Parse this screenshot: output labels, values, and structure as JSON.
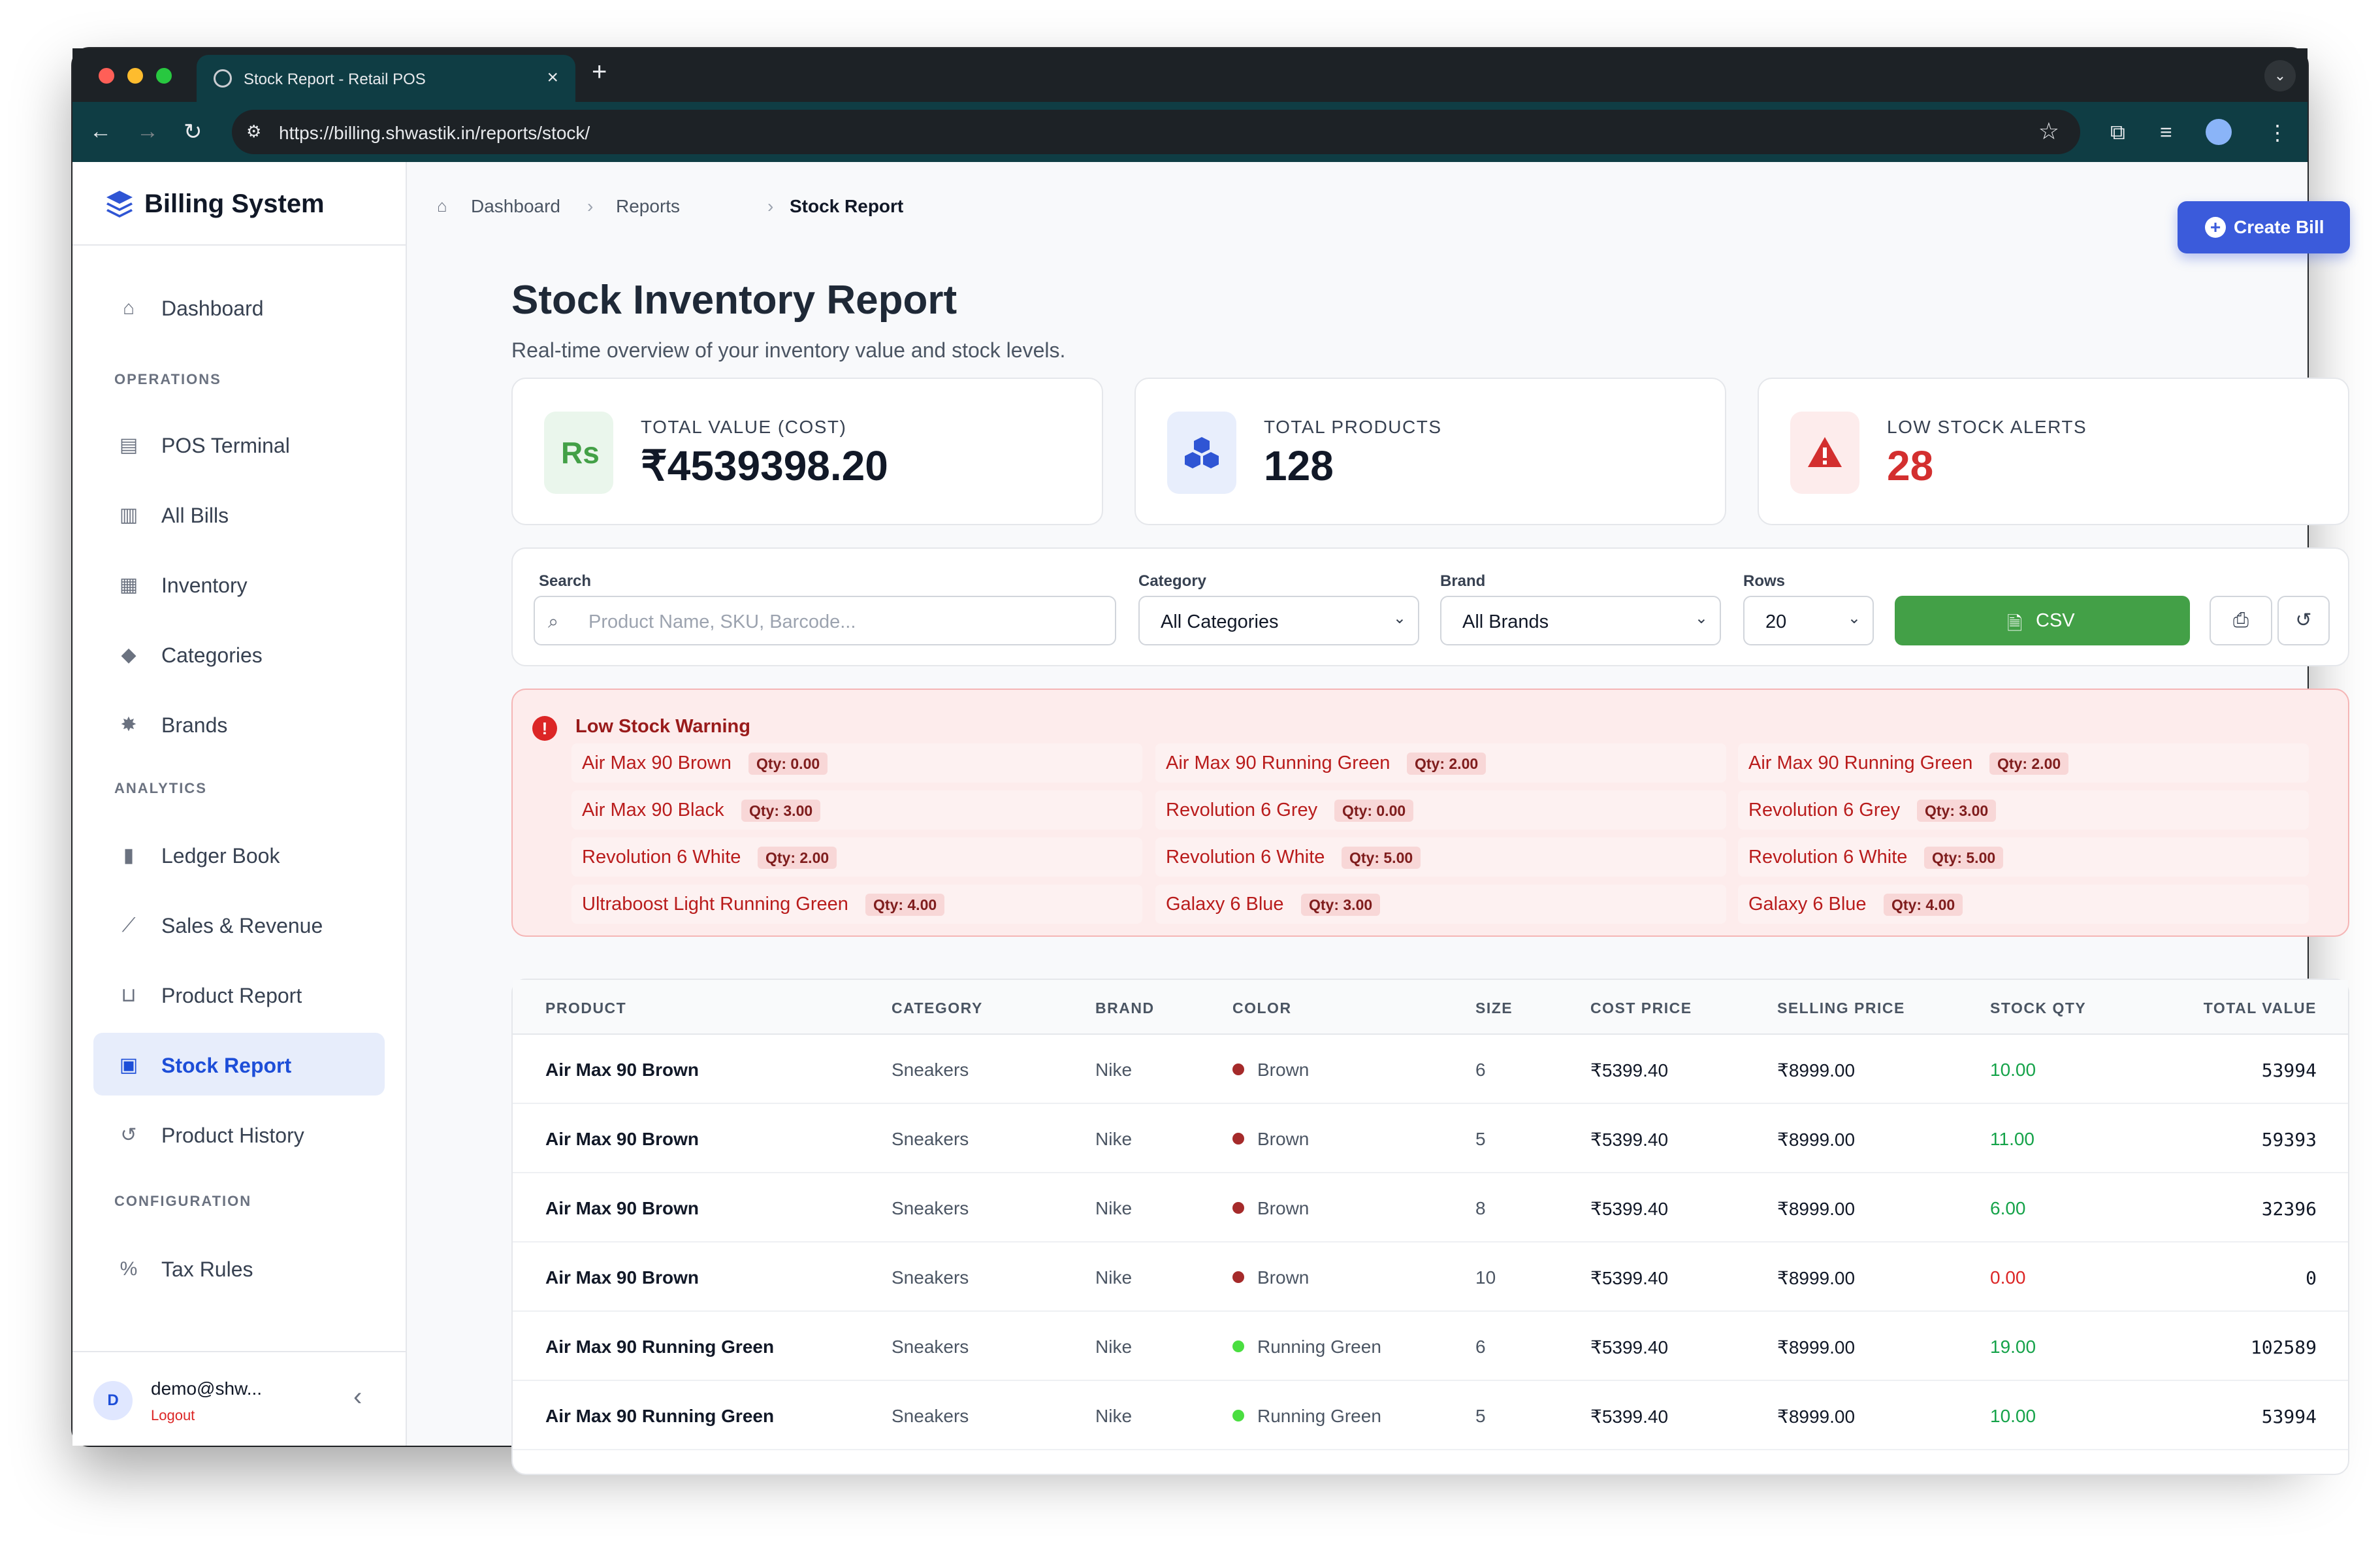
{
  "browser": {
    "tab_title": "Stock Report - Retail POS",
    "url": "https://billing.shwastik.in/reports/stock/"
  },
  "sidebar": {
    "brand": "Billing System",
    "items": [
      {
        "label": "Dashboard",
        "icon": "home-icon"
      },
      {
        "section": "OPERATIONS"
      },
      {
        "label": "POS Terminal",
        "icon": "cash-register-icon"
      },
      {
        "label": "All Bills",
        "icon": "receipt-icon"
      },
      {
        "label": "Inventory",
        "icon": "boxes-icon"
      },
      {
        "label": "Categories",
        "icon": "tags-icon"
      },
      {
        "label": "Brands",
        "icon": "gear-icon"
      },
      {
        "section": "ANALYTICS"
      },
      {
        "label": "Ledger Book",
        "icon": "book-icon"
      },
      {
        "label": "Sales & Revenue",
        "icon": "chart-line-icon"
      },
      {
        "label": "Product Report",
        "icon": "basket-icon"
      },
      {
        "label": "Stock Report",
        "icon": "clipboard-icon",
        "active": true
      },
      {
        "label": "Product History",
        "icon": "history-icon"
      },
      {
        "section": "CONFIGURATION"
      },
      {
        "label": "Tax Rules",
        "icon": "percent-icon"
      }
    ],
    "user": {
      "initial": "D",
      "name": "demo@shw...",
      "logout": "Logout"
    }
  },
  "breadcrumb": [
    "Dashboard",
    "Reports",
    "Stock Report"
  ],
  "create_bill": "Create Bill",
  "page": {
    "title": "Stock Inventory Report",
    "subtitle": "Real-time overview of your inventory value and stock levels."
  },
  "stats": [
    {
      "label": "TOTAL VALUE (COST)",
      "value": "₹4539398.20",
      "icon": "rupee-icon",
      "color": "#43a047"
    },
    {
      "label": "TOTAL PRODUCTS",
      "value": "128",
      "icon": "cubes-icon",
      "color": "#2f55d4"
    },
    {
      "label": "LOW STOCK ALERTS",
      "value": "28",
      "icon": "warning-icon",
      "color": "#d32f2f"
    }
  ],
  "filters": {
    "search_label": "Search",
    "search_placeholder": "Product Name, SKU, Barcode...",
    "category_label": "Category",
    "category_value": "All Categories",
    "brand_label": "Brand",
    "brand_value": "All Brands",
    "rows_label": "Rows",
    "rows_value": "20",
    "csv": "CSV"
  },
  "low_stock": {
    "title": "Low Stock Warning",
    "items": [
      {
        "name": "Air Max 90 Brown",
        "qty": "Qty: 0.00"
      },
      {
        "name": "Air Max 90 Running Green",
        "qty": "Qty: 2.00"
      },
      {
        "name": "Air Max 90 Running Green",
        "qty": "Qty: 2.00"
      },
      {
        "name": "Air Max 90 Black",
        "qty": "Qty: 3.00"
      },
      {
        "name": "Revolution 6 Grey",
        "qty": "Qty: 0.00"
      },
      {
        "name": "Revolution 6 Grey",
        "qty": "Qty: 3.00"
      },
      {
        "name": "Revolution 6 White",
        "qty": "Qty: 2.00"
      },
      {
        "name": "Revolution 6 White",
        "qty": "Qty: 5.00"
      },
      {
        "name": "Revolution 6 White",
        "qty": "Qty: 5.00"
      },
      {
        "name": "Ultraboost Light Running Green",
        "qty": "Qty: 4.00"
      },
      {
        "name": "Galaxy 6 Blue",
        "qty": "Qty: 3.00"
      },
      {
        "name": "Galaxy 6 Blue",
        "qty": "Qty: 4.00"
      }
    ]
  },
  "table": {
    "headers": [
      "PRODUCT",
      "CATEGORY",
      "BRAND",
      "COLOR",
      "SIZE",
      "COST PRICE",
      "SELLING PRICE",
      "STOCK QTY",
      "TOTAL VALUE"
    ],
    "rows": [
      {
        "product": "Air Max 90 Brown",
        "category": "Sneakers",
        "brand": "Nike",
        "color": "Brown",
        "dot": "#a52a2a",
        "size": "6",
        "cost": "₹5399.40",
        "sell": "₹8999.00",
        "qty": "10.00",
        "qty_color": "#16a34a",
        "total": "53994"
      },
      {
        "product": "Air Max 90 Brown",
        "category": "Sneakers",
        "brand": "Nike",
        "color": "Brown",
        "dot": "#a52a2a",
        "size": "5",
        "cost": "₹5399.40",
        "sell": "₹8999.00",
        "qty": "11.00",
        "qty_color": "#16a34a",
        "total": "59393"
      },
      {
        "product": "Air Max 90 Brown",
        "category": "Sneakers",
        "brand": "Nike",
        "color": "Brown",
        "dot": "#a52a2a",
        "size": "8",
        "cost": "₹5399.40",
        "sell": "₹8999.00",
        "qty": "6.00",
        "qty_color": "#16a34a",
        "total": "32396"
      },
      {
        "product": "Air Max 90 Brown",
        "category": "Sneakers",
        "brand": "Nike",
        "color": "Brown",
        "dot": "#a52a2a",
        "size": "10",
        "cost": "₹5399.40",
        "sell": "₹8999.00",
        "qty": "0.00",
        "qty_color": "#dc2626",
        "total": "0"
      },
      {
        "product": "Air Max 90 Running Green",
        "category": "Sneakers",
        "brand": "Nike",
        "color": "Running Green",
        "dot": "#4ade40",
        "size": "6",
        "cost": "₹5399.40",
        "sell": "₹8999.00",
        "qty": "19.00",
        "qty_color": "#16a34a",
        "total": "102589"
      },
      {
        "product": "Air Max 90 Running Green",
        "category": "Sneakers",
        "brand": "Nike",
        "color": "Running Green",
        "dot": "#4ade40",
        "size": "5",
        "cost": "₹5399.40",
        "sell": "₹8999.00",
        "qty": "10.00",
        "qty_color": "#16a34a",
        "total": "53994"
      }
    ]
  }
}
